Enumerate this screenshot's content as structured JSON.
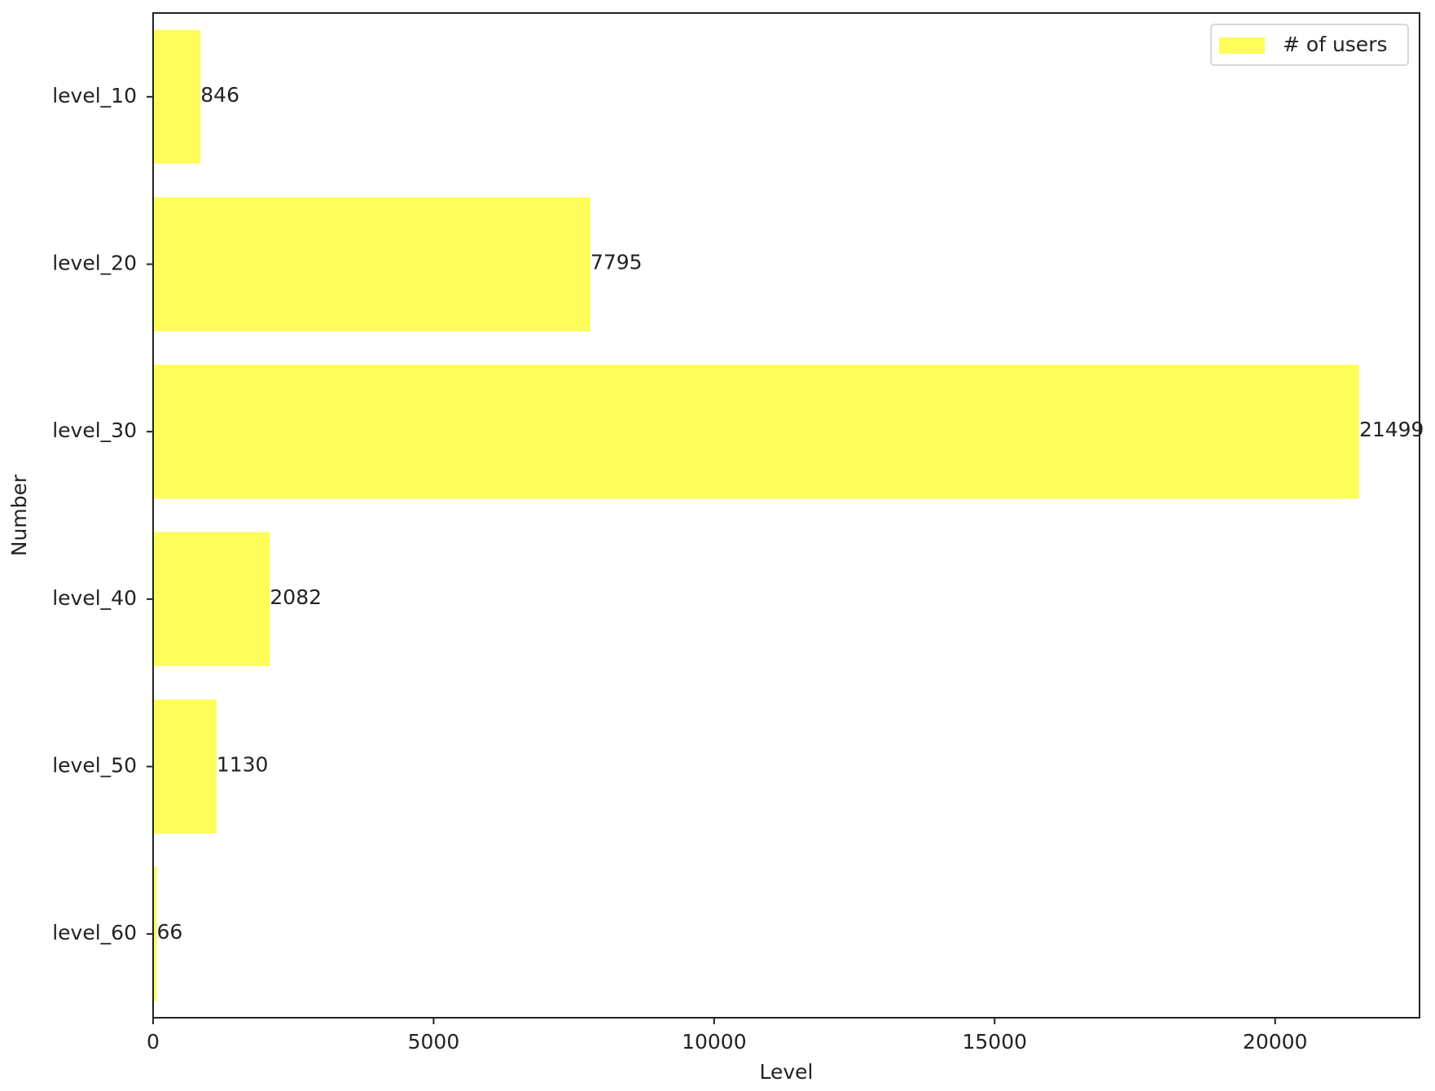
{
  "chart_data": {
    "type": "bar",
    "orientation": "horizontal",
    "categories": [
      "level_10",
      "level_20",
      "level_30",
      "level_40",
      "level_50",
      "level_60"
    ],
    "series": [
      {
        "name": "# of users",
        "values": [
          846,
          7795,
          21499,
          2082,
          1130,
          66
        ],
        "color": "#fdfd5a"
      }
    ],
    "data_labels": [
      "846",
      "7795",
      "21499",
      "2082",
      "1130",
      "66"
    ],
    "xlabel": "Level",
    "ylabel": "Number",
    "xlim": [
      0,
      22574
    ],
    "xticks": [
      0,
      5000,
      10000,
      15000,
      20000
    ],
    "xtick_labels": [
      "0",
      "5000",
      "10000",
      "15000",
      "20000"
    ],
    "grid": false,
    "legend_position": "top-right"
  }
}
